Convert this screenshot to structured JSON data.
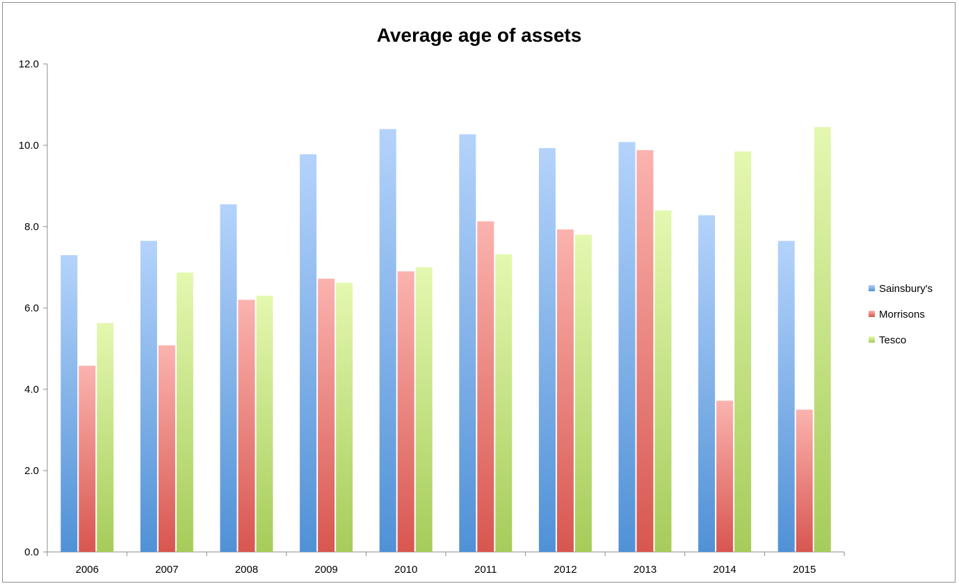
{
  "chart_data": {
    "type": "bar",
    "title": "Average age of assets",
    "xlabel": "",
    "ylabel": "",
    "categories": [
      "2006",
      "2007",
      "2008",
      "2009",
      "2010",
      "2011",
      "2012",
      "2013",
      "2014",
      "2015"
    ],
    "series": [
      {
        "name": "Sainsbury's",
        "values": [
          7.3,
          7.65,
          8.55,
          9.78,
          10.4,
          10.27,
          9.93,
          10.08,
          8.28,
          7.65
        ]
      },
      {
        "name": "Morrisons",
        "values": [
          4.58,
          5.08,
          6.2,
          6.72,
          6.9,
          8.13,
          7.93,
          9.88,
          3.72,
          3.5
        ]
      },
      {
        "name": "Tesco",
        "values": [
          5.63,
          6.87,
          6.3,
          6.62,
          7.0,
          7.32,
          7.8,
          8.4,
          9.85,
          10.45
        ]
      }
    ],
    "ylim": [
      0,
      12
    ],
    "yticks": [
      "0.0",
      "2.0",
      "4.0",
      "6.0",
      "8.0",
      "10.0",
      "12.0"
    ],
    "ytick_values": [
      0,
      2,
      4,
      6,
      8,
      10,
      12
    ],
    "legend_position": "right",
    "grid": false,
    "colors": {
      "series": [
        {
          "top": "#b4d3fb",
          "bottom": "#5091d6"
        },
        {
          "top": "#fbb3af",
          "bottom": "#d85650"
        },
        {
          "top": "#e4f8b0",
          "bottom": "#a6cc5a"
        }
      ],
      "axis": "#8c8c8c"
    }
  }
}
